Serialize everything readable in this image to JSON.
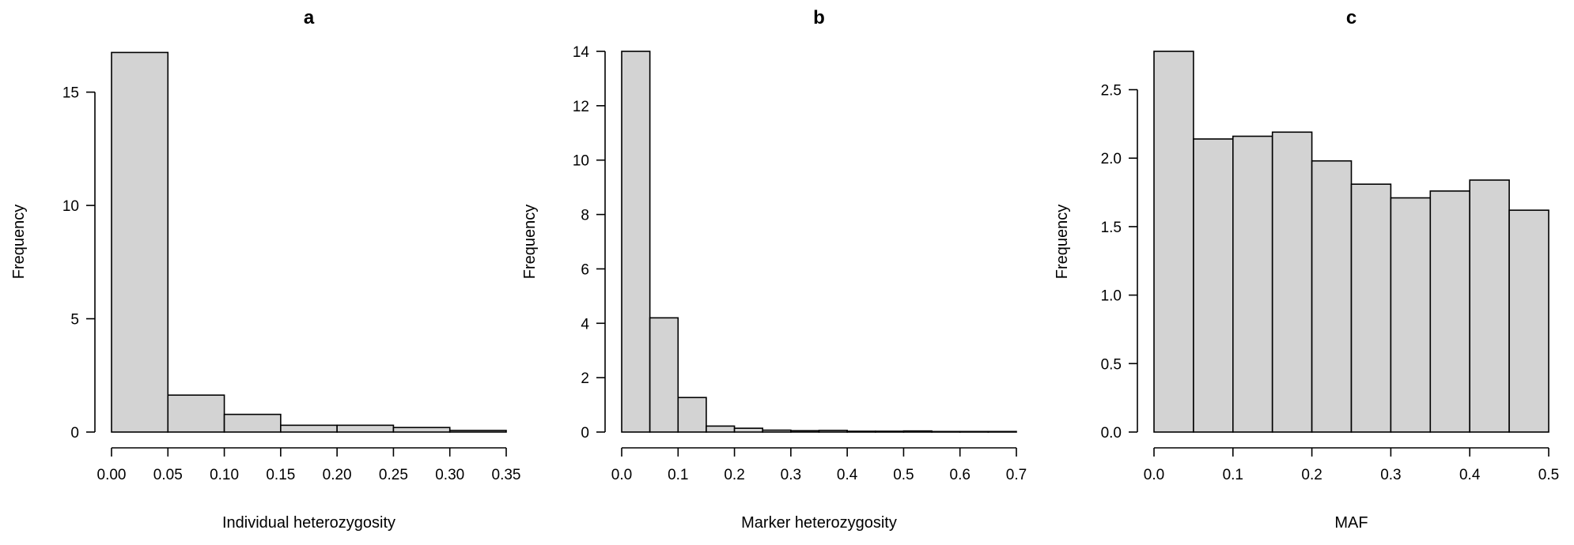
{
  "chart_data": [
    {
      "type": "bar",
      "title": "a",
      "xlabel": "Individual heterozygosity",
      "ylabel": "Frequency",
      "xlim": [
        0,
        0.35
      ],
      "ylim": [
        0,
        16.8
      ],
      "x_ticks": [
        0,
        0.05,
        0.1,
        0.15,
        0.2,
        0.25,
        0.3,
        0.35
      ],
      "x_tick_labels": [
        "0.00",
        "0.05",
        "0.10",
        "0.15",
        "0.20",
        "0.25",
        "0.30",
        "0.35"
      ],
      "y_ticks": [
        0,
        5,
        10,
        15
      ],
      "y_tick_labels": [
        "0",
        "5",
        "10",
        "15"
      ],
      "bins": [
        [
          0,
          0.05
        ],
        [
          0.05,
          0.1
        ],
        [
          0.1,
          0.15
        ],
        [
          0.15,
          0.2
        ],
        [
          0.2,
          0.25
        ],
        [
          0.25,
          0.3
        ],
        [
          0.3,
          0.35
        ]
      ],
      "values": [
        16.75,
        1.63,
        0.78,
        0.3,
        0.3,
        0.2,
        0.07
      ]
    },
    {
      "type": "bar",
      "title": "b",
      "xlabel": "Marker heterozygosity",
      "ylabel": "Frequency",
      "xlim": [
        0,
        0.7
      ],
      "ylim": [
        0,
        14
      ],
      "x_ticks": [
        0,
        0.1,
        0.2,
        0.3,
        0.4,
        0.5,
        0.6,
        0.7
      ],
      "x_tick_labels": [
        "0.0",
        "0.1",
        "0.2",
        "0.3",
        "0.4",
        "0.5",
        "0.6",
        "0.7"
      ],
      "y_ticks": [
        0,
        2,
        4,
        6,
        8,
        10,
        12,
        14
      ],
      "y_tick_labels": [
        "0",
        "2",
        "4",
        "6",
        "8",
        "10",
        "12",
        "14"
      ],
      "bins": [
        [
          0,
          0.05
        ],
        [
          0.05,
          0.1
        ],
        [
          0.1,
          0.15
        ],
        [
          0.15,
          0.2
        ],
        [
          0.2,
          0.25
        ],
        [
          0.25,
          0.3
        ],
        [
          0.3,
          0.35
        ],
        [
          0.35,
          0.4
        ],
        [
          0.4,
          0.45
        ],
        [
          0.45,
          0.5
        ],
        [
          0.5,
          0.55
        ],
        [
          0.55,
          0.6
        ],
        [
          0.6,
          0.65
        ],
        [
          0.65,
          0.7
        ]
      ],
      "values": [
        14.0,
        4.2,
        1.27,
        0.22,
        0.14,
        0.07,
        0.05,
        0.06,
        0.03,
        0.03,
        0.04,
        0.02,
        0.02,
        0.02
      ]
    },
    {
      "type": "bar",
      "title": "c",
      "xlabel": "MAF",
      "ylabel": "Frequency",
      "xlim": [
        0,
        0.5
      ],
      "ylim": [
        0,
        2.78
      ],
      "x_ticks": [
        0,
        0.1,
        0.2,
        0.3,
        0.4,
        0.5
      ],
      "x_tick_labels": [
        "0.0",
        "0.1",
        "0.2",
        "0.3",
        "0.4",
        "0.5"
      ],
      "y_ticks": [
        0,
        0.5,
        1,
        1.5,
        2,
        2.5
      ],
      "y_tick_labels": [
        "0.0",
        "0.5",
        "1.0",
        "1.5",
        "2.0",
        "2.5"
      ],
      "bins": [
        [
          0,
          0.05
        ],
        [
          0.05,
          0.1
        ],
        [
          0.1,
          0.15
        ],
        [
          0.15,
          0.2
        ],
        [
          0.2,
          0.25
        ],
        [
          0.25,
          0.3
        ],
        [
          0.3,
          0.35
        ],
        [
          0.35,
          0.4
        ],
        [
          0.4,
          0.45
        ],
        [
          0.45,
          0.5
        ]
      ],
      "values": [
        2.78,
        2.14,
        2.16,
        2.19,
        1.98,
        1.81,
        1.71,
        1.76,
        1.84,
        1.62
      ]
    }
  ]
}
